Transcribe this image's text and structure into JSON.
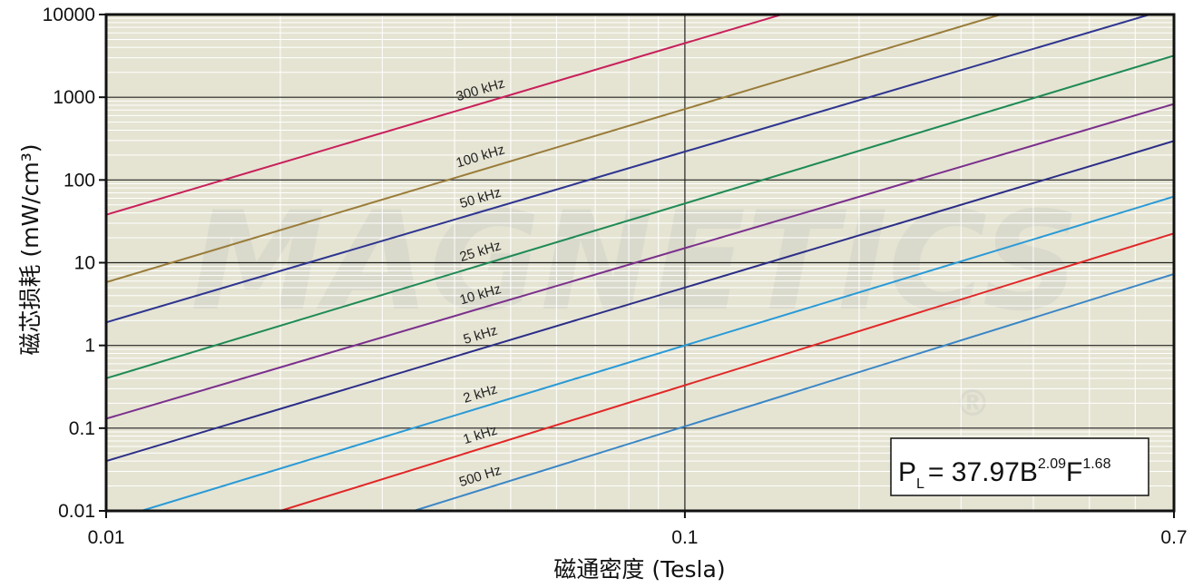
{
  "chart_data": {
    "type": "line",
    "xlabel": "磁通密度 (Tesla)",
    "ylabel": "磁芯损耗 (mW/cm³)",
    "x_scale": "log",
    "y_scale": "log",
    "xlim": [
      0.01,
      0.7
    ],
    "ylim": [
      0.01,
      10000
    ],
    "x_ticks": [
      "0.01",
      "0.1",
      "0.7"
    ],
    "y_ticks": [
      "0.01",
      "0.1",
      "1",
      "10",
      "100",
      "1000",
      "10000"
    ],
    "grid": true,
    "plot_background": "#e5e4d3",
    "watermark": [
      "MAGNETICS",
      "®"
    ],
    "formula": {
      "base": "P",
      "sub": "L",
      "coef": "= 37.97B",
      "b_exp": "2.09",
      "f": "F",
      "f_exp": "1.68"
    },
    "series": [
      {
        "name": "300 kHz",
        "color": "#c8205a",
        "x": [
          0.01,
          0.1
        ],
        "y": [
          38,
          4500
        ]
      },
      {
        "name": "100 kHz",
        "color": "#9a7c3a",
        "x": [
          0.01,
          0.1
        ],
        "y": [
          5.8,
          720
        ]
      },
      {
        "name": "50 kHz",
        "color": "#2e3590",
        "x": [
          0.01,
          0.1
        ],
        "y": [
          1.9,
          220
        ]
      },
      {
        "name": "25 kHz",
        "color": "#1f8a55",
        "x": [
          0.01,
          0.1
        ],
        "y": [
          0.4,
          52
        ]
      },
      {
        "name": "10 kHz",
        "color": "#7b2f8c",
        "x": [
          0.01,
          0.1
        ],
        "y": [
          0.13,
          15
        ]
      },
      {
        "name": "5 kHz",
        "color": "#2b2d87",
        "x": [
          0.01,
          0.1
        ],
        "y": [
          0.04,
          5
        ]
      },
      {
        "name": "2 kHz",
        "color": "#2a9ad6",
        "x": [
          0.0115,
          0.1
        ],
        "y": [
          0.01,
          1
        ]
      },
      {
        "name": "1 kHz",
        "color": "#e02828",
        "x": [
          0.02,
          0.1
        ],
        "y": [
          0.01,
          0.33
        ]
      },
      {
        "name": "500 Hz",
        "color": "#3b86c6",
        "x": [
          0.034,
          0.1
        ],
        "y": [
          0.01,
          0.105
        ]
      }
    ]
  }
}
